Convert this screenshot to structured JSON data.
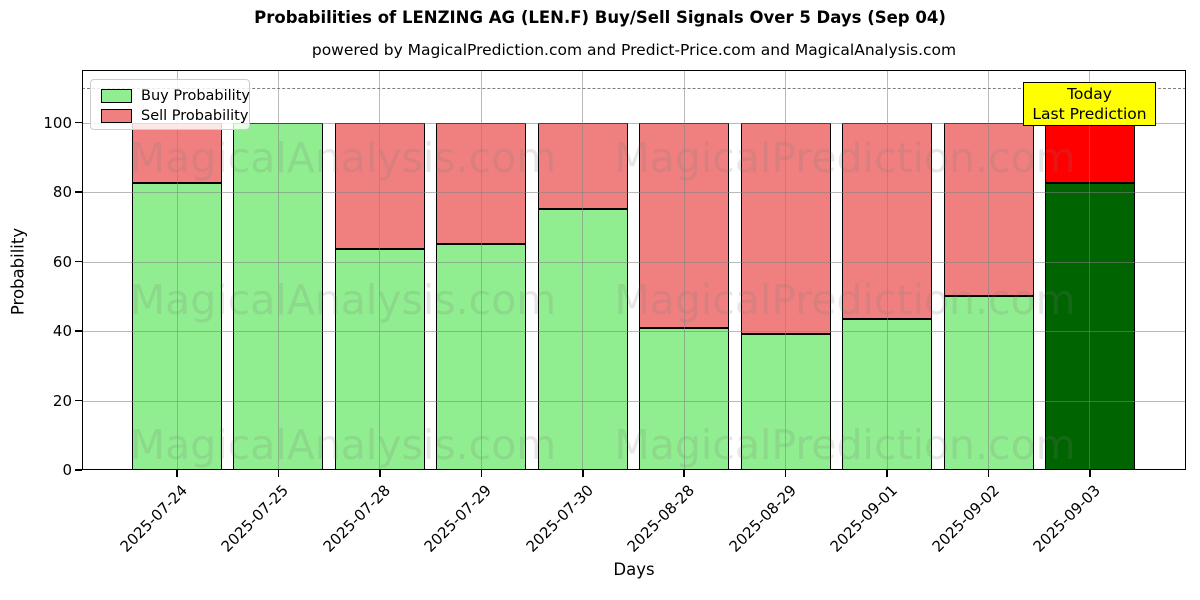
{
  "title": "Probabilities of LENZING AG (LEN.F) Buy/Sell Signals Over 5 Days (Sep 04)",
  "subtitle": "powered by MagicalPrediction.com and Predict-Price.com and MagicalAnalysis.com",
  "watermarks": {
    "left": "MagicalAnalysis.com",
    "right": "MagicalPrediction.com"
  },
  "annotation": {
    "line1": "Today",
    "line2": "Last Prediction",
    "background": "#ffff00"
  },
  "legend": {
    "buy_label": "Buy Probability",
    "sell_label": "Sell Probability"
  },
  "chart_data": {
    "type": "bar",
    "stacked": true,
    "title": "Probabilities of LENZING AG (LEN.F) Buy/Sell Signals Over 5 Days (Sep 04)",
    "xlabel": "Days",
    "ylabel": "Probability",
    "categories": [
      "2025-07-24",
      "2025-07-25",
      "2025-07-28",
      "2025-07-29",
      "2025-07-30",
      "2025-08-28",
      "2025-08-29",
      "2025-09-01",
      "2025-09-02",
      "2025-09-03"
    ],
    "series": [
      {
        "name": "Buy Probability",
        "color": "#90EE90",
        "values": [
          82.5,
          100,
          63.5,
          65,
          75,
          41,
          39,
          43.5,
          50,
          82.5
        ]
      },
      {
        "name": "Sell Probability",
        "color": "#F08080",
        "values": [
          17.5,
          0,
          36.5,
          35,
          25,
          59,
          61,
          56.5,
          50,
          17.5
        ]
      }
    ],
    "last_bar_colors": {
      "buy": "#006400",
      "sell": "#FF0000"
    },
    "yticks": [
      0,
      20,
      40,
      60,
      80,
      100
    ],
    "ylim": [
      0,
      115
    ],
    "dashed_line_y": 110,
    "grid": true,
    "legend_position": "upper left"
  }
}
